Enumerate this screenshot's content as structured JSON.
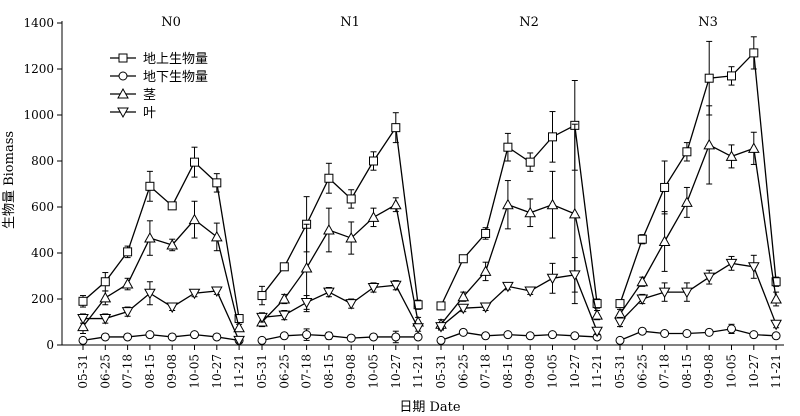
{
  "chart_data": {
    "type": "line",
    "xlabel": "日期 Date",
    "ylabel": "生物量 Biomass",
    "ylim": [
      0,
      1400
    ],
    "yticks": [
      0,
      200,
      400,
      600,
      800,
      1000,
      1200,
      1400
    ],
    "categories": [
      "05-31",
      "06-25",
      "07-18",
      "08-15",
      "09-08",
      "10-05",
      "10-27",
      "11-21"
    ],
    "legend": "top-left",
    "panels": [
      {
        "label": "N0",
        "series": [
          {
            "name": "地上生物量",
            "values": [
              190,
              275,
              405,
              690,
              605,
              795,
              705,
              115
            ],
            "err": [
              25,
              40,
              25,
              65,
              15,
              65,
              40,
              15
            ]
          },
          {
            "name": "地下生物量",
            "values": [
              20,
              35,
              35,
              45,
              35,
              45,
              35,
              20
            ],
            "err": [
              8,
              8,
              8,
              10,
              8,
              10,
              8,
              8
            ]
          },
          {
            "name": "茎",
            "values": [
              80,
              205,
              265,
              465,
              435,
              545,
              470,
              75
            ],
            "err": [
              30,
              30,
              25,
              75,
              25,
              80,
              60,
              15
            ]
          },
          {
            "name": "叶",
            "values": [
              115,
              115,
              145,
              225,
              165,
              225,
              235,
              20
            ],
            "err": [
              20,
              20,
              20,
              50,
              15,
              15,
              15,
              8
            ]
          }
        ]
      },
      {
        "label": "N1",
        "series": [
          {
            "name": "地上生物量",
            "values": [
              215,
              340,
              525,
              725,
              635,
              800,
              945,
              175
            ],
            "err": [
              40,
              15,
              120,
              65,
              40,
              40,
              65,
              20
            ]
          },
          {
            "name": "地下生物量",
            "values": [
              20,
              40,
              45,
              40,
              30,
              35,
              35,
              35
            ],
            "err": [
              8,
              10,
              25,
              15,
              10,
              10,
              25,
              10
            ]
          },
          {
            "name": "茎",
            "values": [
              100,
              200,
              335,
              500,
              465,
              555,
              610,
              100
            ],
            "err": [
              20,
              20,
              190,
              95,
              70,
              40,
              30,
              20
            ]
          },
          {
            "name": "叶",
            "values": [
              120,
              130,
              185,
              230,
              180,
              250,
              260,
              75
            ],
            "err": [
              20,
              20,
              30,
              20,
              20,
              20,
              20,
              15
            ]
          }
        ]
      },
      {
        "label": "N2",
        "series": [
          {
            "name": "地上生物量",
            "values": [
              170,
              375,
              485,
              860,
              795,
              905,
              955,
              180
            ],
            "err": [
              15,
              15,
              25,
              60,
              40,
              110,
              195,
              20
            ]
          },
          {
            "name": "地下生物量",
            "values": [
              20,
              55,
              40,
              45,
              40,
              45,
              40,
              35
            ],
            "err": [
              8,
              10,
              8,
              10,
              8,
              8,
              8,
              8
            ]
          },
          {
            "name": "茎",
            "values": [
              90,
              210,
              320,
              610,
              575,
              610,
              570,
              130
            ],
            "err": [
              20,
              20,
              40,
              105,
              60,
              145,
              390,
              20
            ]
          },
          {
            "name": "叶",
            "values": [
              80,
              160,
              165,
              255,
              235,
              290,
              305,
              60
            ],
            "err": [
              15,
              15,
              15,
              15,
              15,
              65,
              75,
              15
            ]
          }
        ]
      },
      {
        "label": "N3",
        "series": [
          {
            "name": "地上生物量",
            "values": [
              180,
              460,
              685,
              840,
              1160,
              1170,
              1270,
              275
            ],
            "err": [
              15,
              20,
              115,
              40,
              160,
              40,
              70,
              20
            ]
          },
          {
            "name": "地下生物量",
            "values": [
              20,
              60,
              50,
              50,
              55,
              70,
              45,
              40
            ],
            "err": [
              8,
              10,
              8,
              8,
              8,
              20,
              8,
              8
            ]
          },
          {
            "name": "茎",
            "values": [
              135,
              275,
              450,
              620,
              870,
              820,
              855,
              200
            ],
            "err": [
              20,
              20,
              130,
              65,
              170,
              50,
              70,
              30
            ]
          },
          {
            "name": "叶",
            "values": [
              100,
              200,
              230,
              230,
              295,
              355,
              340,
              90
            ],
            "err": [
              20,
              20,
              40,
              40,
              30,
              30,
              50,
              15
            ]
          }
        ]
      }
    ]
  }
}
